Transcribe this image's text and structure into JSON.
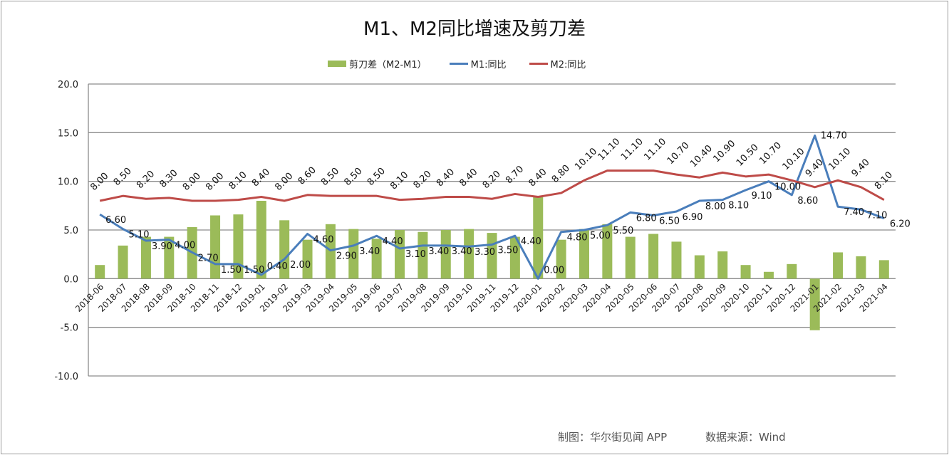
{
  "chart_data": {
    "type": "bar+line",
    "title": "M1、M2同比增速及剪刀差",
    "categories": [
      "2018-06",
      "2018-07",
      "2018-08",
      "2018-09",
      "2018-10",
      "2018-11",
      "2018-12",
      "2019-01",
      "2019-02",
      "2019-03",
      "2019-04",
      "2019-05",
      "2019-06",
      "2019-07",
      "2019-08",
      "2019-09",
      "2019-10",
      "2019-11",
      "2019-12",
      "2020-01",
      "2020-02",
      "2020-03",
      "2020-04",
      "2020-05",
      "2020-06",
      "2020-07",
      "2020-08",
      "2020-09",
      "2020-10",
      "2020-11",
      "2020-12",
      "2021-01",
      "2021-02",
      "2021-03",
      "2021-04"
    ],
    "series": [
      {
        "name": "剪刀差（M2-M1）",
        "type": "bar",
        "color": "#9bbb59",
        "values": [
          1.4,
          3.4,
          4.3,
          4.3,
          5.3,
          6.5,
          6.6,
          8.0,
          6.0,
          4.0,
          5.6,
          5.1,
          4.1,
          5.0,
          4.8,
          5.0,
          5.1,
          4.7,
          4.3,
          8.4,
          4.0,
          5.1,
          5.6,
          4.3,
          4.6,
          3.8,
          2.4,
          2.8,
          1.4,
          0.7,
          1.5,
          -5.3,
          2.7,
          2.3,
          1.9
        ]
      },
      {
        "name": "M1:同比",
        "type": "line",
        "color": "#4a7ebb",
        "values": [
          6.6,
          5.1,
          3.9,
          4.0,
          2.7,
          1.5,
          1.5,
          0.4,
          2.0,
          4.6,
          2.9,
          3.4,
          4.4,
          3.1,
          3.4,
          3.4,
          3.3,
          3.5,
          4.4,
          0.0,
          4.8,
          5.0,
          5.5,
          6.8,
          6.5,
          6.9,
          8.0,
          8.1,
          9.1,
          10.0,
          8.6,
          14.7,
          7.4,
          7.1,
          6.2
        ]
      },
      {
        "name": "M2:同比",
        "type": "line",
        "color": "#be4b48",
        "values": [
          8.0,
          8.5,
          8.2,
          8.3,
          8.0,
          8.0,
          8.1,
          8.4,
          8.0,
          8.6,
          8.5,
          8.5,
          8.5,
          8.1,
          8.2,
          8.4,
          8.4,
          8.2,
          8.7,
          8.4,
          8.8,
          10.1,
          11.1,
          11.1,
          11.1,
          10.7,
          10.4,
          10.9,
          10.5,
          10.7,
          10.1,
          9.4,
          10.1,
          9.4,
          8.1
        ]
      }
    ],
    "yticks": [
      "20.0",
      "15.0",
      "10.0",
      "5.0",
      "0.0",
      "-5.0",
      "-10.0"
    ],
    "ylim": [
      -10,
      20
    ],
    "grid": true,
    "legend_position": "top-center",
    "data_labels": "line series, 2 decimals"
  },
  "footer": {
    "made_by": "制图：华尔街见闻 APP",
    "source": "数据来源：Wind"
  },
  "watermark": "华尔街见闻"
}
